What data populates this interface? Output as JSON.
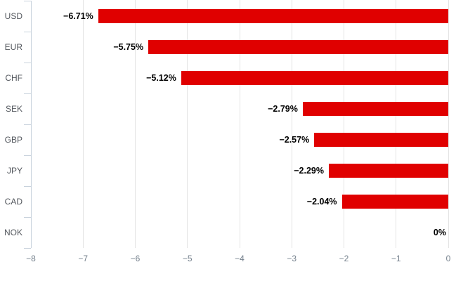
{
  "chart_data": {
    "type": "bar",
    "orientation": "horizontal",
    "categories": [
      "USD",
      "EUR",
      "CHF",
      "SEK",
      "GBP",
      "JPY",
      "CAD",
      "NOK"
    ],
    "values": [
      -6.71,
      -5.75,
      -5.12,
      -2.79,
      -2.57,
      -2.29,
      -2.04,
      0
    ],
    "value_labels": [
      "−6.71%",
      "−5.75%",
      "−5.12%",
      "−2.79%",
      "−2.57%",
      "−2.29%",
      "−2.04%",
      "0%"
    ],
    "x_ticks": [
      -8,
      -7,
      -6,
      -5,
      -4,
      -3,
      -2,
      -1,
      0
    ],
    "x_tick_labels": [
      "−8",
      "−7",
      "−6",
      "−5",
      "−4",
      "−3",
      "−2",
      "−1",
      "0"
    ],
    "xlim": [
      -8,
      0
    ],
    "grid": true,
    "legend": false,
    "colors": {
      "bar": "#e00000",
      "gridline": "#e4e4e4",
      "axis": "#c8d2dc",
      "category_label": "#53575d",
      "axis_tick_label": "#74808c",
      "value_label": "#000000"
    }
  }
}
